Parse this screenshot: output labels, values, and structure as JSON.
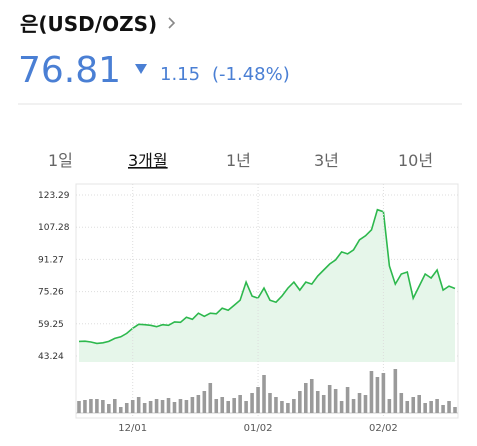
{
  "header": {
    "title": "은(USD/OZS)",
    "price": "76.81",
    "change": "1.15",
    "change_percent": "(-1.48%)"
  },
  "tabs": [
    {
      "label": "1일",
      "selected": false
    },
    {
      "label": "3개월",
      "selected": true
    },
    {
      "label": "1년",
      "selected": false
    },
    {
      "label": "3년",
      "selected": false
    },
    {
      "label": "10년",
      "selected": false
    }
  ],
  "chart_data": [
    {
      "type": "line",
      "color": "#2db84d",
      "fill": "#e6f6ea",
      "grid": true,
      "categories": [
        null,
        null,
        null,
        null,
        null,
        null,
        null,
        null,
        null,
        "12/01",
        null,
        null,
        null,
        null,
        null,
        null,
        null,
        null,
        null,
        null,
        null,
        null,
        null,
        null,
        null,
        null,
        null,
        null,
        null,
        null,
        "01/02",
        null,
        null,
        null,
        null,
        null,
        null,
        null,
        null,
        null,
        null,
        null,
        null,
        null,
        null,
        null,
        null,
        null,
        null,
        null,
        null,
        "02/02",
        null,
        null,
        null,
        null,
        null,
        null,
        null,
        null,
        null,
        null,
        null,
        null
      ],
      "values": [
        50.5,
        50.6,
        50.2,
        49.5,
        49.8,
        50.5,
        52.0,
        52.8,
        54.5,
        57.0,
        59.0,
        58.8,
        58.5,
        57.8,
        58.8,
        58.5,
        60.2,
        60.0,
        62.5,
        61.5,
        64.5,
        63.0,
        64.5,
        64.2,
        67.0,
        66.0,
        68.5,
        71.0,
        80.0,
        73.0,
        72.0,
        77.0,
        71.0,
        70.0,
        73.0,
        77.0,
        80.0,
        76.0,
        80.0,
        79.0,
        83.0,
        86.0,
        89.0,
        91.0,
        95.0,
        94.0,
        96.0,
        101.0,
        103.0,
        106.0,
        116.0,
        115.0,
        88.0,
        79.0,
        84.0,
        85.0,
        72.0,
        78.0,
        84.0,
        82.0,
        86.0,
        76.0,
        78.0,
        76.81
      ],
      "ylim": [
        43.24,
        123.29
      ],
      "yticks": [
        43.24,
        59.25,
        75.26,
        91.27,
        107.28,
        123.29
      ]
    },
    {
      "type": "bar",
      "color": "#9a9a9a",
      "ylim": [
        0,
        45
      ],
      "values": [
        12,
        13,
        14,
        14,
        13,
        9,
        14,
        6,
        10,
        13,
        16,
        10,
        12,
        14,
        13,
        15,
        11,
        14,
        13,
        16,
        18,
        22,
        30,
        14,
        16,
        12,
        15,
        18,
        12,
        20,
        26,
        38,
        20,
        16,
        12,
        10,
        14,
        22,
        30,
        34,
        22,
        18,
        28,
        24,
        12,
        26,
        14,
        20,
        18,
        42,
        36,
        40,
        14,
        44,
        20,
        12,
        16,
        18,
        10,
        12,
        14,
        8,
        12,
        6
      ]
    }
  ]
}
